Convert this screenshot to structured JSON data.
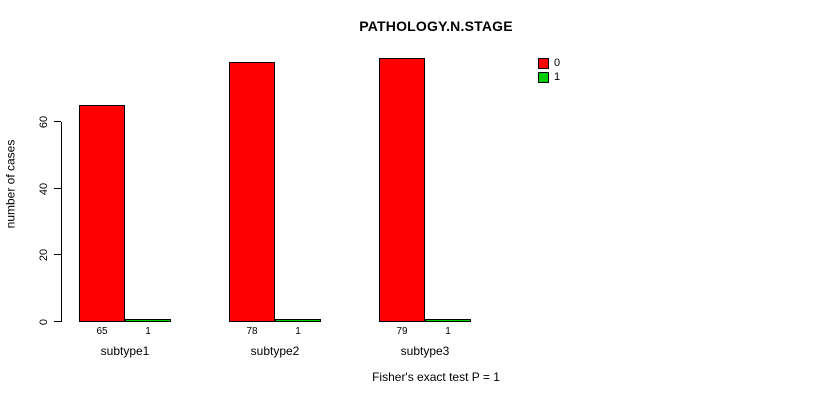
{
  "chart_data": {
    "type": "bar",
    "title": "PATHOLOGY.N.STAGE",
    "xlabel": "",
    "ylabel": "number of cases",
    "categories": [
      "subtype1",
      "subtype2",
      "subtype3"
    ],
    "series": [
      {
        "name": "0",
        "color": "#FF0000",
        "values": [
          65,
          78,
          79
        ]
      },
      {
        "name": "1",
        "color": "#00CD00",
        "values": [
          1,
          1,
          1
        ]
      }
    ],
    "yticks": [
      0,
      20,
      40,
      60
    ],
    "ylim": [
      0,
      83
    ],
    "grid": false,
    "legend_position": "right",
    "value_labels_shown": true,
    "annotation": "Fisher's exact test P = 1"
  },
  "legend": {
    "items": [
      {
        "label": "0",
        "color": "#FF0000"
      },
      {
        "label": "1",
        "color": "#00CD00"
      }
    ]
  }
}
